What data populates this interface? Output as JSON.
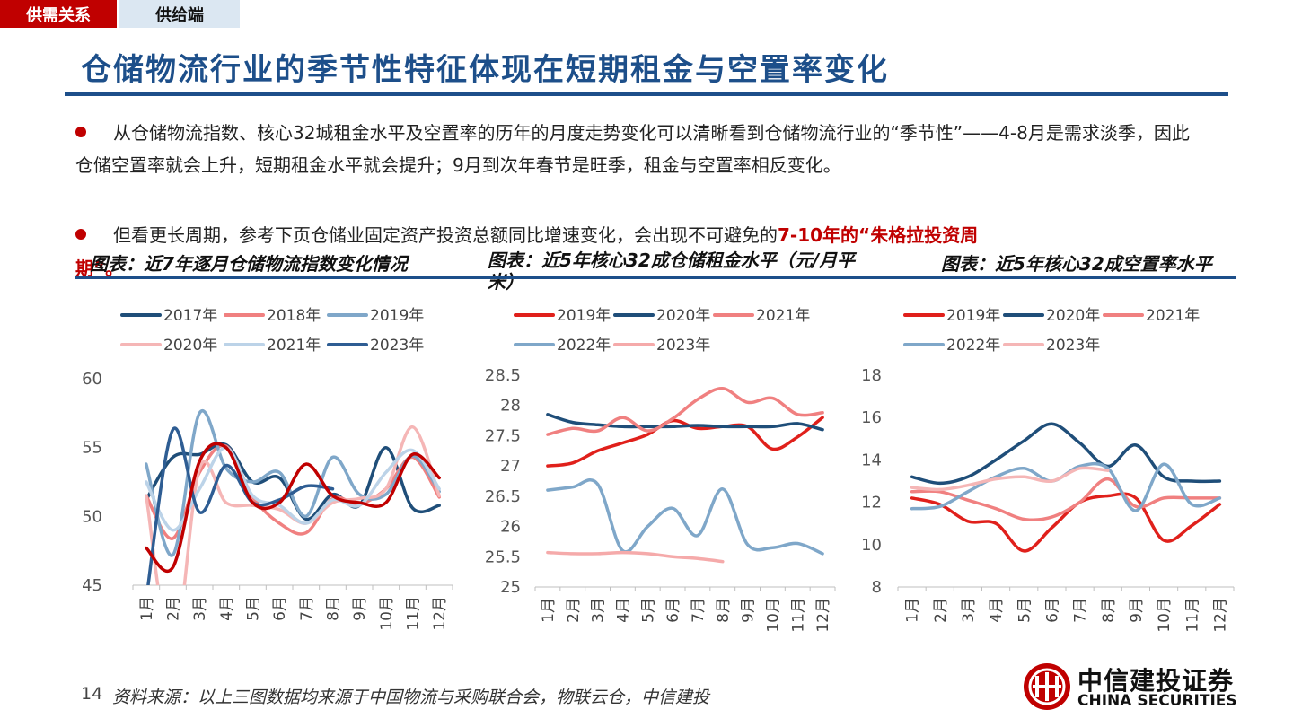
{
  "tabs": {
    "active": "供需关系",
    "inactive": "供给端"
  },
  "page": {
    "title": "仓储物流行业的季节性特征体现在短期租金与空置率变化",
    "page_number": "14",
    "source": "资料来源：以上三图数据均来源于中国物流与采购联合会，物联云仓，中信建投"
  },
  "bullets": {
    "b1": "从仓储物流指数、核心32城租金水平及空置率的历年的月度走势变化可以清晰看到仓储物流行业的“季节性”——4-8月是需求淡季，因此仓储空置率就会上升，短期租金水平就会提升；9月到次年春节是旺季，租金与空置率相反变化。",
    "b2_plain": "但看更长周期，参考下页仓储业固定资产投资总额同比增速变化，会出现不可避免的",
    "b2_highlight": "7-10年的“朱格拉投资周",
    "b2_tail": "期”。"
  },
  "logo": {
    "cn": "中信建投证券",
    "en": "CHINA SECURITIES"
  },
  "chart_titles": {
    "c1": "图表：近7年逐月仓储物流指数变化情况",
    "c2": "图表：近5年核心32成仓储租金水平（元/月平米）",
    "c3": "图表：近5年核心32成空置率水平"
  },
  "chart_data": [
    {
      "type": "line",
      "title": "图表：近7年逐月仓储物流指数变化情况",
      "categories": [
        "1月",
        "2月",
        "3月",
        "4月",
        "5月",
        "6月",
        "7月",
        "8月",
        "9月",
        "10月",
        "11月",
        "12月"
      ],
      "ylim": [
        45,
        60
      ],
      "yticks": [
        45,
        50,
        55,
        60
      ],
      "legend_rows": [
        [
          "2017年",
          "2018年",
          "2019年"
        ],
        [
          "2020年",
          "2021年",
          "2023年"
        ]
      ],
      "series": [
        {
          "name": "2017年",
          "color": "#1f4e79",
          "values": [
            51.2,
            54.3,
            54.5,
            55.2,
            52.5,
            52.8,
            49.8,
            51.6,
            50.8,
            55.0,
            50.6,
            50.8
          ]
        },
        {
          "name": "2018年",
          "color": "#f08080",
          "values": [
            51.5,
            48.4,
            53.2,
            55.1,
            51.4,
            49.5,
            48.8,
            51.3,
            50.9,
            52.0,
            54.3,
            51.4
          ]
        },
        {
          "name": "2019年",
          "color": "#7fa7c9",
          "values": [
            53.8,
            47.2,
            57.5,
            53.5,
            52.5,
            53.2,
            50.0,
            54.3,
            51.6,
            51.6,
            54.4,
            51.8
          ]
        },
        {
          "name": "2020年",
          "color": "#f5b6b6",
          "values": [
            51.5,
            40.0,
            53.5,
            51.0,
            50.8,
            50.5,
            49.5,
            51.0,
            51.3,
            52.0,
            56.5,
            51.5
          ]
        },
        {
          "name": "2021年",
          "color": "#bcd3e8",
          "values": [
            52.5,
            49.0,
            52.0,
            55.0,
            51.5,
            50.8,
            49.5,
            51.2,
            50.8,
            53.2,
            54.8,
            52.0
          ]
        },
        {
          "name": "2023年",
          "color": "#2e5d93",
          "values": [
            44.0,
            56.3,
            50.3,
            53.7,
            51.0,
            51.2,
            52.2,
            52.0,
            null,
            null,
            null,
            null
          ]
        },
        {
          "name": "",
          "color": "#c00000",
          "values": [
            47.7,
            46.3,
            54.0,
            55.0,
            51.0,
            51.0,
            53.8,
            51.5,
            51.0,
            51.0,
            54.5,
            52.8
          ]
        }
      ]
    },
    {
      "type": "line",
      "title": "图表：近5年核心32成仓储租金水平（元/月平米）",
      "categories": [
        "1月",
        "2月",
        "3月",
        "4月",
        "5月",
        "6月",
        "7月",
        "8月",
        "9月",
        "10月",
        "11月",
        "12月"
      ],
      "ylim": [
        25,
        28.5
      ],
      "yticks": [
        25,
        25.5,
        26,
        26.5,
        27,
        27.5,
        28,
        28.5
      ],
      "legend_rows": [
        [
          "2019年",
          "2020年",
          "2021年"
        ],
        [
          "2022年",
          "2023年"
        ]
      ],
      "series": [
        {
          "name": "2019年",
          "color": "#e0201b",
          "values": [
            27.0,
            27.05,
            27.25,
            27.38,
            27.52,
            27.75,
            27.62,
            27.65,
            27.65,
            27.28,
            27.48,
            27.8
          ]
        },
        {
          "name": "2020年",
          "color": "#1f4e79",
          "values": [
            27.85,
            27.72,
            27.68,
            27.65,
            27.65,
            27.65,
            27.67,
            27.65,
            27.65,
            27.65,
            27.7,
            27.6
          ]
        },
        {
          "name": "2021年",
          "color": "#f08080",
          "values": [
            27.52,
            27.62,
            27.58,
            27.8,
            27.58,
            27.78,
            28.1,
            28.28,
            28.05,
            28.12,
            27.85,
            27.88
          ]
        },
        {
          "name": "2022年",
          "color": "#7fa7c9",
          "values": [
            26.6,
            26.65,
            26.7,
            25.6,
            26.0,
            26.3,
            25.85,
            26.62,
            25.7,
            25.65,
            25.72,
            25.55
          ]
        },
        {
          "name": "2023年",
          "color": "#f5aaaa",
          "values": [
            25.57,
            25.55,
            25.55,
            25.57,
            25.55,
            25.5,
            25.47,
            25.42,
            null,
            null,
            null,
            null
          ]
        }
      ]
    },
    {
      "type": "line",
      "title": "图表：近5年核心32成空置率水平",
      "categories": [
        "1月",
        "2月",
        "3月",
        "4月",
        "5月",
        "6月",
        "7月",
        "8月",
        "9月",
        "10月",
        "11月",
        "12月"
      ],
      "ylim": [
        8,
        18
      ],
      "yticks": [
        8,
        10,
        12,
        14,
        16,
        18
      ],
      "legend_rows": [
        [
          "2019年",
          "2020年",
          "2021年"
        ],
        [
          "2022年",
          "2023年"
        ]
      ],
      "series": [
        {
          "name": "2019年",
          "color": "#e0201b",
          "values": [
            12.2,
            11.9,
            11.1,
            11.0,
            9.7,
            10.8,
            12.0,
            12.3,
            12.2,
            10.2,
            10.9,
            11.9
          ]
        },
        {
          "name": "2020年",
          "color": "#1f4e79",
          "values": [
            13.2,
            12.9,
            13.2,
            14.0,
            14.9,
            15.7,
            14.8,
            13.7,
            14.7,
            13.2,
            13.0,
            13.0
          ]
        },
        {
          "name": "2021年",
          "color": "#f08080",
          "values": [
            12.5,
            12.5,
            12.1,
            11.7,
            11.2,
            11.3,
            12.0,
            13.1,
            11.8,
            12.2,
            12.2,
            12.2
          ]
        },
        {
          "name": "2022年",
          "color": "#7fa7c9",
          "values": [
            11.7,
            11.8,
            12.5,
            13.2,
            13.6,
            13.0,
            13.7,
            13.6,
            11.6,
            13.8,
            11.9,
            12.2
          ]
        },
        {
          "name": "2023年",
          "color": "#f5b6b6",
          "values": [
            12.7,
            12.6,
            12.8,
            13.1,
            13.2,
            13.0,
            13.6,
            13.5,
            null,
            null,
            null,
            null
          ]
        }
      ]
    }
  ]
}
